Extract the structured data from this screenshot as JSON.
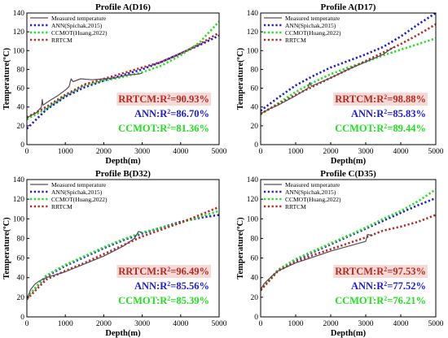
{
  "figure": {
    "colors": {
      "measured": "#5a4a55",
      "ann": "#1c1cd6",
      "ccmot": "#22e01f",
      "rrtcm": "#b32a22",
      "rrtcm_badge_bg": "#f7d9d6"
    }
  },
  "chart_data": [
    {
      "type": "line",
      "title": "Profile A(D16)",
      "xlabel": "Depth(m)",
      "ylabel": "Temperature(ºC)",
      "xlim": [
        0,
        5000
      ],
      "ylim": [
        0,
        140
      ],
      "xticks": [
        "0",
        "1000",
        "2000",
        "3000",
        "4000",
        "5000"
      ],
      "yticks": [
        "0",
        "20",
        "40",
        "60",
        "80",
        "100",
        "120",
        "140"
      ],
      "legend_position": "top-left",
      "legend": [
        "Measured temperature",
        "ANN(Spichak,2015)",
        "CCMOT(Huang,2022)",
        "RRTCM"
      ],
      "r2": [
        {
          "key": "rrtcm",
          "label": "RRTCM:R",
          "sup": "2",
          "value": "=90.93%"
        },
        {
          "key": "ann",
          "label": "ANN:R",
          "sup": "2",
          "value": "=86.70%"
        },
        {
          "key": "ccmot",
          "label": "CCMOT:R",
          "sup": "2",
          "value": "=81.36%"
        }
      ],
      "series": [
        {
          "name": "Measured temperature",
          "key": "measured",
          "x": [
            0,
            100,
            250,
            380,
            400,
            420,
            600,
            800,
            1000,
            1100,
            1150,
            1200,
            1400,
            1700,
            2000,
            2300,
            2600,
            2900,
            3000
          ],
          "y": [
            28,
            31,
            34,
            40,
            48,
            42,
            47,
            52,
            58,
            62,
            70,
            67,
            70,
            69,
            70,
            71,
            74,
            75,
            76
          ]
        },
        {
          "name": "ANN(Spichak,2015)",
          "key": "ann",
          "x": [
            0,
            500,
            1000,
            1500,
            2000,
            2500,
            3000,
            3500,
            4000,
            4500,
            5000
          ],
          "y": [
            17,
            37,
            51,
            61,
            68,
            74,
            80,
            88,
            97,
            106,
            116
          ]
        },
        {
          "name": "CCMOT(Huang,2022)",
          "key": "ccmot",
          "x": [
            0,
            500,
            1000,
            1500,
            2000,
            2500,
            3000,
            3500,
            4000,
            4500,
            5000
          ],
          "y": [
            27,
            38,
            52,
            63,
            68,
            72,
            77,
            84,
            95,
            109,
            131
          ]
        },
        {
          "name": "RRTCM",
          "key": "rrtcm",
          "x": [
            0,
            500,
            1000,
            1500,
            2000,
            2500,
            3000,
            3500,
            4000,
            4500,
            5000
          ],
          "y": [
            29,
            40,
            53,
            64,
            70,
            76,
            82,
            88,
            97,
            107,
            119
          ]
        }
      ]
    },
    {
      "type": "line",
      "title": "Profile A(D17)",
      "xlabel": "Depth(m)",
      "ylabel": "Temperature(ºC)",
      "xlim": [
        0,
        5000
      ],
      "ylim": [
        0,
        140
      ],
      "xticks": [
        "0",
        "1000",
        "2000",
        "3000",
        "4000",
        "5000"
      ],
      "yticks": [
        "0",
        "20",
        "40",
        "60",
        "80",
        "100",
        "120",
        "140"
      ],
      "legend_position": "top-left",
      "legend": [
        "Measured temperature",
        "ANN(Spichak,2015)",
        "CCMOT(Huang,2022)",
        "RRTCM"
      ],
      "r2": [
        {
          "key": "rrtcm",
          "label": "RRTCM:R",
          "sup": "2",
          "value": "=98.88%"
        },
        {
          "key": "ann",
          "label": "ANN:R",
          "sup": "2",
          "value": "=85.83%"
        },
        {
          "key": "ccmot",
          "label": "CCMOT:R",
          "sup": "2",
          "value": "=89.44%"
        }
      ],
      "series": [
        {
          "name": "Measured temperature",
          "key": "measured",
          "x": [
            0,
            250,
            500,
            1000,
            1350,
            1400,
            1450,
            1500,
            2000,
            2500,
            3000,
            3500,
            3800
          ],
          "y": [
            33,
            38,
            42,
            52,
            60,
            66,
            62,
            63,
            71,
            80,
            88,
            96,
            104
          ]
        },
        {
          "name": "ANN(Spichak,2015)",
          "key": "ann",
          "x": [
            0,
            500,
            1000,
            1500,
            2000,
            2500,
            3000,
            3500,
            4000,
            4500,
            5000
          ],
          "y": [
            36,
            50,
            63,
            73,
            82,
            89,
            96,
            104,
            115,
            128,
            140
          ]
        },
        {
          "name": "CCMOT(Huang,2022)",
          "key": "ccmot",
          "x": [
            0,
            500,
            1000,
            1500,
            2000,
            2500,
            3000,
            3500,
            4000,
            4500,
            5000
          ],
          "y": [
            32,
            44,
            56,
            66,
            75,
            82,
            88,
            95,
            101,
            107,
            113
          ]
        },
        {
          "name": "RRTCM",
          "key": "rrtcm",
          "x": [
            0,
            500,
            1000,
            1500,
            2000,
            2500,
            3000,
            3500,
            4000,
            4500,
            5000
          ],
          "y": [
            33,
            43,
            53,
            62,
            71,
            80,
            89,
            98,
            107,
            117,
            128
          ]
        }
      ]
    },
    {
      "type": "line",
      "title": "Profile B(D32)",
      "xlabel": "Depth(m)",
      "ylabel": "Temperature(ºC)",
      "xlim": [
        0,
        5000
      ],
      "ylim": [
        0,
        140
      ],
      "xticks": [
        "0",
        "1000",
        "2000",
        "3000",
        "4000",
        "5000"
      ],
      "yticks": [
        "0",
        "20",
        "40",
        "60",
        "80",
        "100",
        "120",
        "140"
      ],
      "legend_position": "top-left",
      "legend": [
        "Measured temperature",
        "ANN(Spichak,2015)",
        "CCMOT(Huang,2022)",
        "RRTCM"
      ],
      "r2": [
        {
          "key": "rrtcm",
          "label": "RRTCM:R",
          "sup": "2",
          "value": "=96.49%"
        },
        {
          "key": "ann",
          "label": "ANN:R",
          "sup": "2",
          "value": "=85.56%"
        },
        {
          "key": "ccmot",
          "label": "CCMOT:R",
          "sup": "2",
          "value": "=85.39%"
        }
      ],
      "series": [
        {
          "name": "Measured temperature",
          "key": "measured",
          "x": [
            0,
            100,
            200,
            300,
            500,
            1000,
            1500,
            2000,
            2500,
            2800,
            2900,
            3000
          ],
          "y": [
            18,
            28,
            33,
            36,
            40,
            46,
            54,
            62,
            72,
            80,
            87,
            86
          ]
        },
        {
          "name": "ANN(Spichak,2015)",
          "key": "ann",
          "x": [
            0,
            500,
            1000,
            1500,
            2000,
            2500,
            3000,
            3500,
            4000,
            4500,
            5000
          ],
          "y": [
            20,
            41,
            52,
            61,
            70,
            78,
            85,
            91,
            97,
            101,
            104
          ]
        },
        {
          "name": "CCMOT(Huang,2022)",
          "key": "ccmot",
          "x": [
            0,
            500,
            1000,
            1500,
            2000,
            2500,
            3000,
            3500,
            4000,
            4500,
            5000
          ],
          "y": [
            20,
            42,
            53,
            62,
            71,
            79,
            86,
            91,
            96,
            102,
            108
          ]
        },
        {
          "name": "RRTCM",
          "key": "rrtcm",
          "x": [
            0,
            500,
            1000,
            1500,
            2000,
            2500,
            3000,
            3500,
            4000,
            4500,
            5000
          ],
          "y": [
            18,
            38,
            47,
            55,
            64,
            73,
            82,
            89,
            96,
            104,
            112
          ]
        }
      ]
    },
    {
      "type": "line",
      "title": "Profile C(D35)",
      "xlabel": "Depth(m)",
      "ylabel": "Temperature(ºC)",
      "xlim": [
        0,
        5000
      ],
      "ylim": [
        0,
        140
      ],
      "xticks": [
        "0",
        "1000",
        "2000",
        "3000",
        "4000",
        "5000"
      ],
      "yticks": [
        "0",
        "20",
        "40",
        "60",
        "80",
        "100",
        "120",
        "140"
      ],
      "legend_position": "top-left",
      "legend": [
        "Measured temperature",
        "ANN(Spichak,2015)",
        "CCMOT(Huang,2022)",
        "RRTCM"
      ],
      "r2": [
        {
          "key": "rrtcm",
          "label": "RRTCM:R",
          "sup": "2",
          "value": "=97.53%"
        },
        {
          "key": "ann",
          "label": "ANN:R",
          "sup": "2",
          "value": "=77.52%"
        },
        {
          "key": "ccmot",
          "label": "CCMOT:R",
          "sup": "2",
          "value": "=76.21%"
        }
      ],
      "series": [
        {
          "name": "Measured temperature",
          "key": "measured",
          "x": [
            0,
            100,
            300,
            500,
            1000,
            1500,
            2000,
            2500,
            3000,
            3050,
            3200
          ],
          "y": [
            28,
            34,
            41,
            47,
            55,
            61,
            67,
            72,
            77,
            84,
            83
          ]
        },
        {
          "name": "ANN(Spichak,2015)",
          "key": "ann",
          "x": [
            0,
            500,
            1000,
            1500,
            2000,
            2500,
            3000,
            3500,
            4000,
            4500,
            5000
          ],
          "y": [
            28,
            48,
            58,
            66,
            74,
            82,
            90,
            98,
            106,
            114,
            121
          ]
        },
        {
          "name": "CCMOT(Huang,2022)",
          "key": "ccmot",
          "x": [
            0,
            500,
            1000,
            1500,
            2000,
            2500,
            3000,
            3500,
            4000,
            4500,
            5000
          ],
          "y": [
            28,
            48,
            59,
            67,
            75,
            83,
            91,
            100,
            108,
            118,
            130
          ]
        },
        {
          "name": "RRTCM",
          "key": "rrtcm",
          "x": [
            0,
            500,
            1000,
            1500,
            2000,
            2500,
            3000,
            3500,
            4000,
            4500,
            5000
          ],
          "y": [
            27,
            47,
            56,
            63,
            69,
            75,
            81,
            88,
            92,
            97,
            104
          ]
        }
      ]
    }
  ]
}
